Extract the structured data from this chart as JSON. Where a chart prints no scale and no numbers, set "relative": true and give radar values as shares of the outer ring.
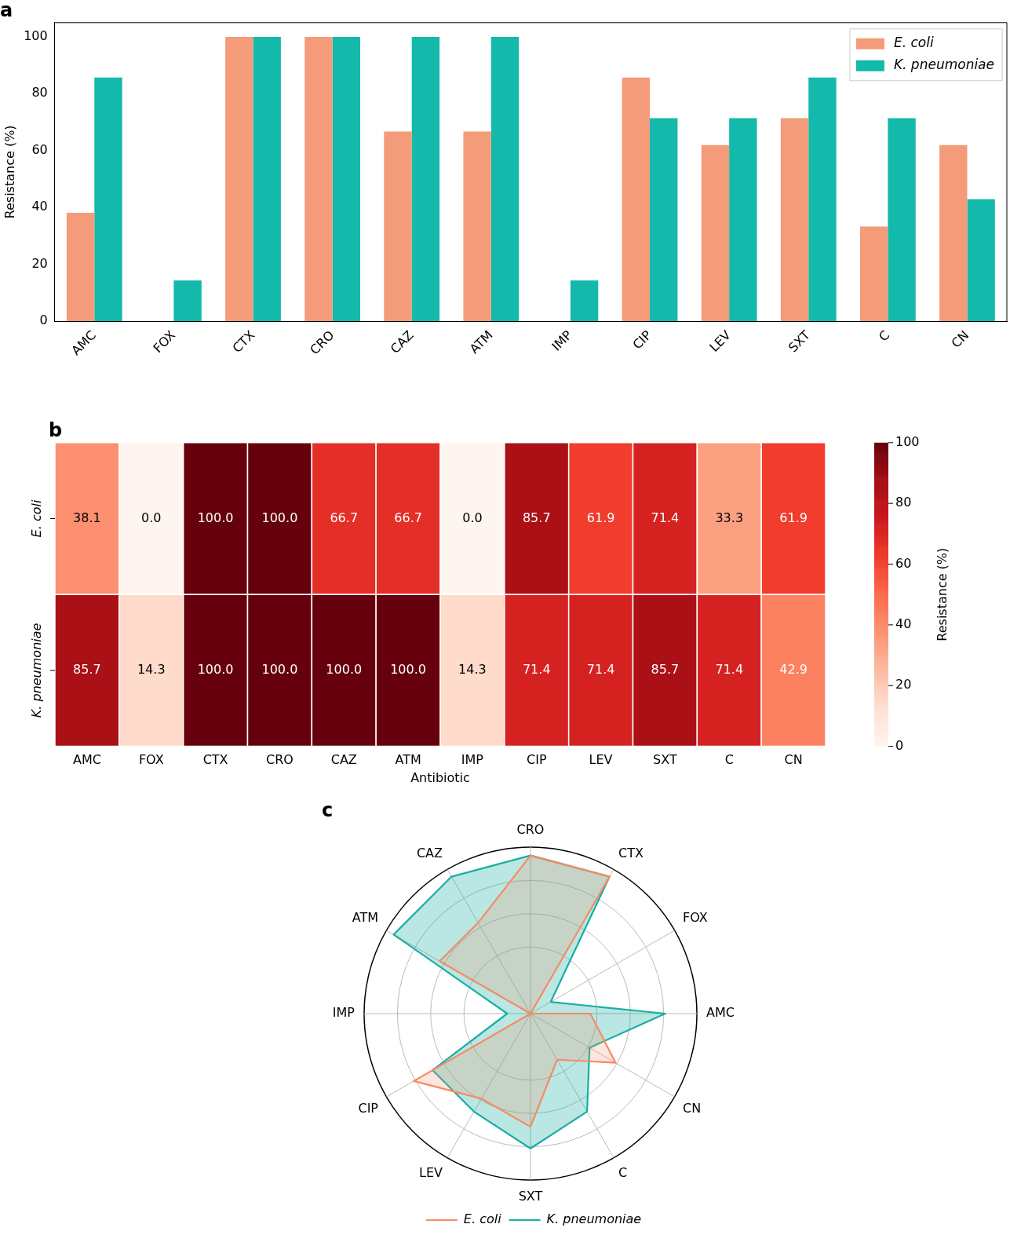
{
  "chart_data": [
    {
      "type": "bar",
      "title": "a",
      "ylabel": "Resistance (%)",
      "categories": [
        "AMC",
        "FOX",
        "CTX",
        "CRO",
        "CAZ",
        "ATM",
        "IMP",
        "CIP",
        "LEV",
        "SXT",
        "C",
        "CN"
      ],
      "series": [
        {
          "name": "E. coli",
          "color": "#f49b7a",
          "values": [
            38.1,
            0.0,
            100,
            100,
            66.7,
            66.7,
            0.0,
            85.7,
            61.9,
            71.4,
            33.3,
            61.9
          ]
        },
        {
          "name": "K. pneumoniae",
          "color": "#13b9aa",
          "values": [
            85.7,
            14.3,
            100,
            100,
            100,
            100,
            14.3,
            71.4,
            71.4,
            85.7,
            71.4,
            42.9
          ]
        }
      ],
      "ylim": [
        0,
        105
      ],
      "yticks": [
        0,
        20,
        40,
        60,
        80,
        100
      ],
      "legend": "top right"
    },
    {
      "type": "heatmap",
      "title": "b",
      "xlabel": "Antibiotic",
      "clabel": "Resistance (%)",
      "categories": [
        "AMC",
        "FOX",
        "CTX",
        "CRO",
        "CAZ",
        "ATM",
        "IMP",
        "CIP",
        "LEV",
        "SXT",
        "C",
        "CN"
      ],
      "y_categories": [
        "E. coli",
        "K. pneumoniae"
      ],
      "cells": [
        [
          38.1,
          0.0,
          100,
          100,
          66.7,
          66.7,
          0.0,
          85.7,
          61.9,
          71.4,
          33.3,
          61.9
        ],
        [
          85.7,
          14.3,
          100,
          100,
          100,
          100,
          14.3,
          71.4,
          71.4,
          85.7,
          71.4,
          42.9
        ]
      ],
      "cell_labels": [
        [
          "38.1",
          "0.0",
          "100.0",
          "100.0",
          "66.7",
          "66.7",
          "0.0",
          "85.7",
          "61.9",
          "71.4",
          "33.3",
          "61.9"
        ],
        [
          "85.7",
          "14.3",
          "100.0",
          "100.0",
          "100.0",
          "100.0",
          "14.3",
          "71.4",
          "71.4",
          "85.7",
          "71.4",
          "42.9"
        ]
      ],
      "clim": [
        0,
        100
      ],
      "cticks": [
        0,
        20,
        40,
        60,
        80,
        100
      ]
    },
    {
      "type": "radar",
      "title": "c",
      "categories": [
        "CRO",
        "CTX",
        "FOX",
        "AMC",
        "CN",
        "C",
        "SXT",
        "LEV",
        "CIP",
        "IMP",
        "ATM",
        "CAZ"
      ],
      "series": [
        {
          "name": "E. coli",
          "color": "#f58b62",
          "values": [
            0.95,
            0.95,
            0,
            0.36,
            0.59,
            0.32,
            0.68,
            0.59,
            0.81,
            0,
            0.63,
            0.63
          ]
        },
        {
          "name": "K. pneumoniae",
          "color": "#1aaea3",
          "values": [
            0.95,
            0.95,
            0.14,
            0.81,
            0.41,
            0.68,
            0.81,
            0.68,
            0.68,
            0.14,
            0.95,
            0.95
          ]
        }
      ],
      "relative": true,
      "grid": true,
      "legend": "bottom"
    }
  ]
}
